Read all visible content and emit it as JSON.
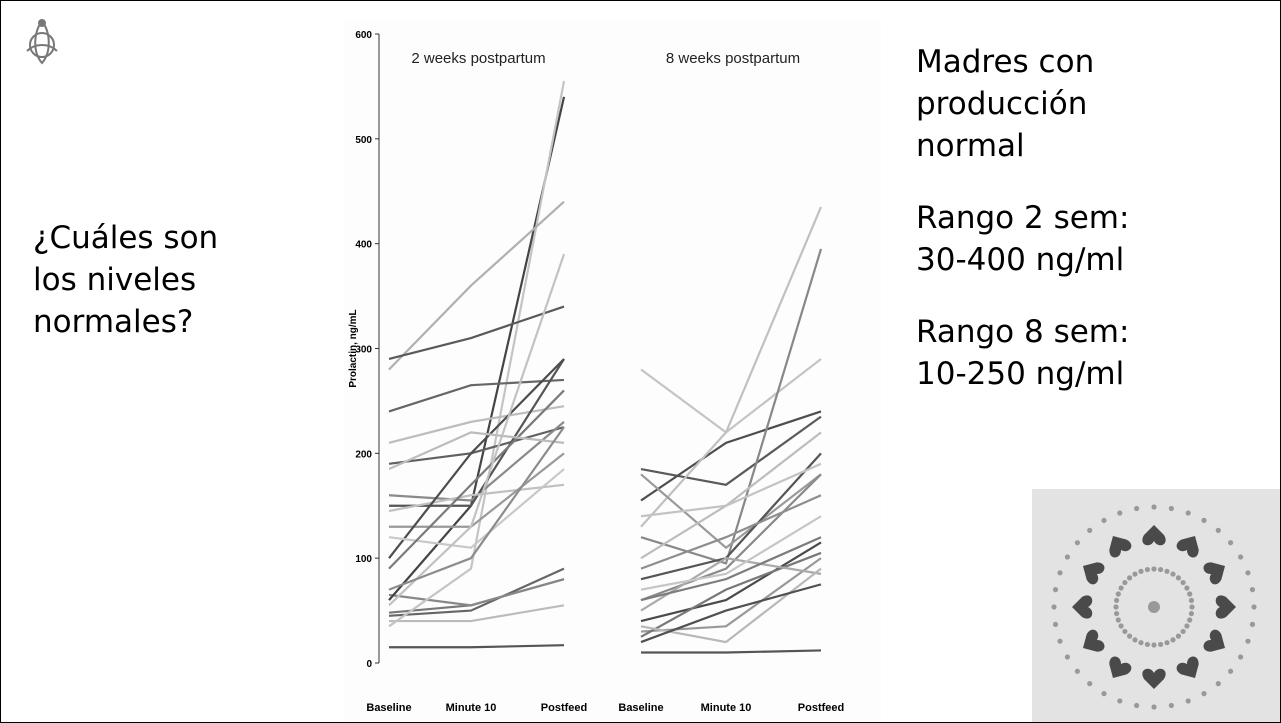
{
  "slide": {
    "question": [
      "¿Cuáles son",
      "los niveles",
      "normales?"
    ],
    "notes": [
      [
        "Madres con",
        "producción",
        "normal"
      ],
      [
        "Rango 2 sem:",
        "30-400 ng/ml"
      ],
      [
        "Rango 8 sem:",
        "10-250 ng/ml"
      ]
    ]
  },
  "chart_data": [
    {
      "type": "line",
      "title": "2 weeks postpartum",
      "y_label": "Prolactin, ng/mL",
      "categories": [
        "Baseline",
        "Minute 10",
        "Postfeed"
      ],
      "ylim": [
        0,
        600
      ],
      "yticks": [
        0,
        100,
        200,
        300,
        400,
        500,
        600
      ],
      "series": [
        {
          "color": "#555555",
          "values": [
            15,
            15,
            17
          ]
        },
        {
          "color": "#666666",
          "values": [
            45,
            50,
            90
          ]
        },
        {
          "color": "#777777",
          "values": [
            48,
            55,
            80
          ]
        },
        {
          "color": "#888888",
          "values": [
            65,
            55,
            80
          ]
        },
        {
          "color": "#bbbbbb",
          "values": [
            40,
            40,
            55
          ]
        },
        {
          "color": "#444444",
          "values": [
            60,
            150,
            540
          ]
        },
        {
          "color": "#c4c4c4",
          "values": [
            35,
            90,
            555
          ]
        },
        {
          "color": "#b0b0b0",
          "values": [
            280,
            360,
            440
          ]
        },
        {
          "color": "#5a5a5a",
          "values": [
            290,
            310,
            340
          ]
        },
        {
          "color": "#666666",
          "values": [
            240,
            265,
            270
          ]
        },
        {
          "color": "#bdbdbd",
          "values": [
            210,
            230,
            245
          ]
        },
        {
          "color": "#606060",
          "values": [
            190,
            200,
            225
          ]
        },
        {
          "color": "#8a8a8a",
          "values": [
            160,
            155,
            230
          ]
        },
        {
          "color": "#555555",
          "values": [
            150,
            150,
            290
          ]
        },
        {
          "color": "#c0c0c0",
          "values": [
            145,
            160,
            170
          ]
        },
        {
          "color": "#999999",
          "values": [
            130,
            130,
            200
          ]
        },
        {
          "color": "#4d4d4d",
          "values": [
            100,
            200,
            290
          ]
        },
        {
          "color": "#c8c8c8",
          "values": [
            120,
            110,
            185
          ]
        },
        {
          "color": "#7a7a7a",
          "values": [
            90,
            170,
            260
          ]
        },
        {
          "color": "#c2c2c2",
          "values": [
            55,
            130,
            390
          ]
        },
        {
          "color": "#bcbcbc",
          "values": [
            185,
            220,
            210
          ]
        },
        {
          "color": "#8c8c8c",
          "values": [
            70,
            100,
            225
          ]
        }
      ]
    },
    {
      "type": "line",
      "title": "8 weeks postpartum",
      "categories": [
        "Baseline",
        "Minute 10",
        "Postfeed"
      ],
      "ylim": [
        0,
        600
      ],
      "series": [
        {
          "color": "#555555",
          "values": [
            10,
            10,
            12
          ]
        },
        {
          "color": "#c4c4c4",
          "values": [
            280,
            220,
            290
          ]
        },
        {
          "color": "#5a5a5a",
          "values": [
            185,
            170,
            235
          ]
        },
        {
          "color": "#4d4d4d",
          "values": [
            155,
            210,
            240
          ]
        },
        {
          "color": "#c0c0c0",
          "values": [
            130,
            220,
            435
          ]
        },
        {
          "color": "#888888",
          "values": [
            120,
            95,
            395
          ]
        },
        {
          "color": "#9a9a9a",
          "values": [
            180,
            110,
            180
          ]
        },
        {
          "color": "#bdbdbd",
          "values": [
            100,
            150,
            220
          ]
        },
        {
          "color": "#555555",
          "values": [
            80,
            100,
            200
          ]
        },
        {
          "color": "#8a8a8a",
          "values": [
            60,
            90,
            180
          ]
        },
        {
          "color": "#4a4a4a",
          "values": [
            40,
            60,
            115
          ]
        },
        {
          "color": "#999999",
          "values": [
            30,
            35,
            100
          ]
        },
        {
          "color": "#777777",
          "values": [
            25,
            70,
            105
          ]
        },
        {
          "color": "#aaaaaa",
          "values": [
            50,
            100,
            85
          ]
        },
        {
          "color": "#c6c6c6",
          "values": [
            70,
            85,
            140
          ]
        },
        {
          "color": "#8e8e8e",
          "values": [
            90,
            120,
            160
          ]
        },
        {
          "color": "#b8b8b8",
          "values": [
            35,
            20,
            90
          ]
        },
        {
          "color": "#505050",
          "values": [
            20,
            50,
            75
          ]
        },
        {
          "color": "#c3c3c3",
          "values": [
            140,
            150,
            190
          ]
        },
        {
          "color": "#7c7c7c",
          "values": [
            60,
            80,
            120
          ]
        }
      ]
    }
  ]
}
